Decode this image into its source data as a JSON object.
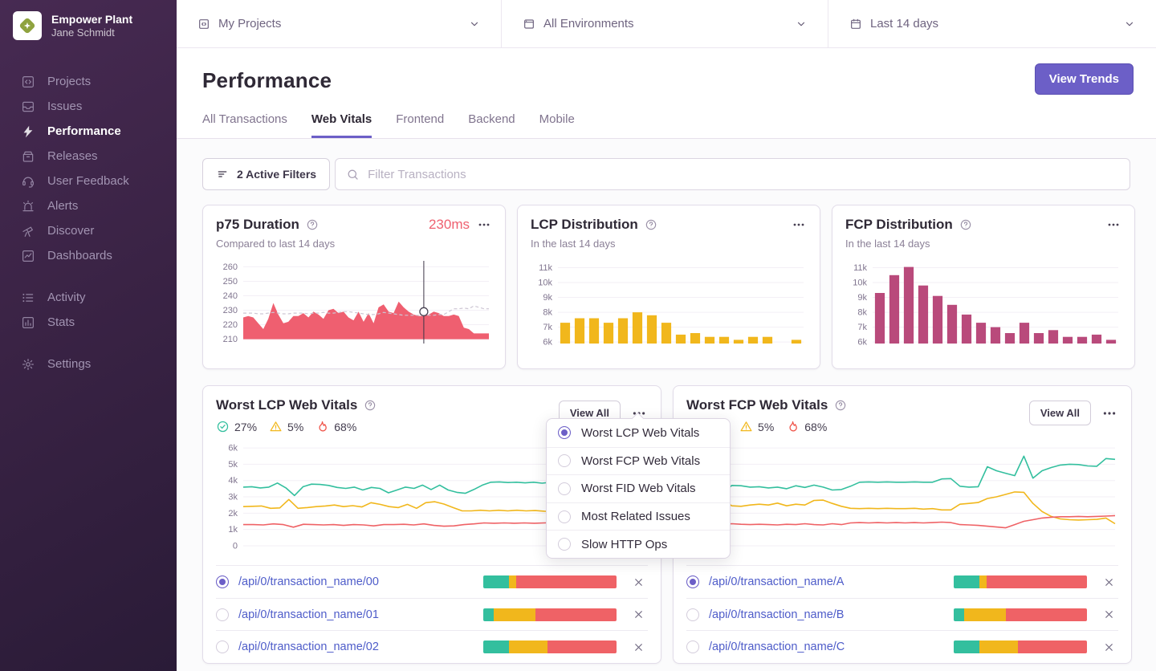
{
  "org": {
    "name": "Empower Plant",
    "user": "Jane Schmidt"
  },
  "sidebar": {
    "items": [
      {
        "label": "Projects"
      },
      {
        "label": "Issues"
      },
      {
        "label": "Performance",
        "active": true
      },
      {
        "label": "Releases"
      },
      {
        "label": "User Feedback"
      },
      {
        "label": "Alerts"
      },
      {
        "label": "Discover"
      },
      {
        "label": "Dashboards"
      }
    ],
    "secondary": [
      {
        "label": "Activity"
      },
      {
        "label": "Stats"
      }
    ],
    "settings": {
      "label": "Settings"
    }
  },
  "topbar": {
    "project_filter": "My Projects",
    "environment_filter": "All Environments",
    "date_filter": "Last 14 days"
  },
  "header": {
    "title": "Performance",
    "view_trends": "View Trends",
    "tabs": [
      {
        "label": "All Transactions"
      },
      {
        "label": "Web Vitals",
        "active": true
      },
      {
        "label": "Frontend"
      },
      {
        "label": "Backend"
      },
      {
        "label": "Mobile"
      }
    ]
  },
  "filter_bar": {
    "active_filters": "2 Active Filters",
    "search_placeholder": "Filter Transactions"
  },
  "cards": {
    "p75": {
      "title": "p75 Duration",
      "value": "230ms",
      "subtitle": "Compared to last 14 days"
    },
    "lcp": {
      "title": "LCP Distribution",
      "subtitle": "In the last 14 days"
    },
    "fcp": {
      "title": "FCP Distribution",
      "subtitle": "In the last 14 days"
    }
  },
  "vitals_cards": [
    {
      "title": "Worst LCP Web Vitals",
      "view_all": "View All",
      "stats": {
        "good": "27%",
        "meh": "5%",
        "poor": "68%"
      },
      "rows": [
        {
          "name": "/api/0/transaction_name/00",
          "selected": true,
          "bar": [
            19,
            6,
            75
          ]
        },
        {
          "name": "/api/0/transaction_name/01",
          "selected": false,
          "bar": [
            8,
            31,
            61
          ]
        },
        {
          "name": "/api/0/transaction_name/02",
          "selected": false,
          "bar": [
            19,
            29,
            52
          ]
        }
      ]
    },
    {
      "title": "Worst FCP Web Vitals",
      "view_all": "View All",
      "stats": {
        "good": "27%",
        "meh": "5%",
        "poor": "68%"
      },
      "rows": [
        {
          "name": "/api/0/transaction_name/A",
          "selected": true,
          "bar": [
            19,
            6,
            75
          ]
        },
        {
          "name": "/api/0/transaction_name/B",
          "selected": false,
          "bar": [
            8,
            31,
            61
          ]
        },
        {
          "name": "/api/0/transaction_name/C",
          "selected": false,
          "bar": [
            19,
            29,
            52
          ]
        }
      ]
    }
  ],
  "dropdown": {
    "items": [
      {
        "label": "Worst LCP Web Vitals",
        "selected": true
      },
      {
        "label": "Worst FCP Web Vitals",
        "selected": false
      },
      {
        "label": "Worst FID Web Vitals",
        "selected": false
      },
      {
        "label": "Most Related Issues",
        "selected": false
      },
      {
        "label": "Slow HTTP Ops",
        "selected": false
      }
    ]
  },
  "colors": {
    "accent": "#6C5FC7",
    "good": "#33BF9E",
    "meh": "#F1B71C",
    "poor": "#EF6266",
    "p75_area": "#EF5F70",
    "lcp_bars": "#F1B71C",
    "fcp_bars": "#B94A7B",
    "link": "#4E5CC9",
    "value_red": "#EF6070"
  },
  "chart_data": [
    {
      "id": "p75",
      "type": "area",
      "title": "p75 Duration (ms)",
      "grid": true,
      "ymin": 207,
      "ymax": 263,
      "baseline": 210,
      "color": "#EF5F70",
      "yticks": [
        [
          260,
          "260"
        ],
        [
          250,
          "250"
        ],
        [
          240,
          "240"
        ],
        [
          230,
          "230"
        ],
        [
          220,
          "220"
        ],
        [
          210,
          "210"
        ]
      ],
      "values": [
        225,
        226,
        225,
        221,
        217,
        224,
        235,
        227,
        221,
        222,
        226,
        226,
        228,
        225,
        229,
        227,
        224,
        230,
        231,
        228,
        229,
        225,
        223,
        229,
        222,
        228,
        221,
        232,
        234,
        229,
        228,
        236,
        232,
        229,
        227,
        226,
        226,
        227,
        229,
        228,
        226,
        226,
        227,
        226,
        218,
        217,
        214,
        214,
        214,
        214
      ],
      "compare": [
        228,
        228,
        228,
        227.5,
        227.5,
        228,
        228.5,
        228,
        227.5,
        227.5,
        228,
        228,
        228,
        227.5,
        228,
        228,
        228.5,
        228,
        228,
        228.5,
        229,
        229,
        228.5,
        228,
        227.5,
        227,
        227,
        227.5,
        228.5,
        228,
        227.5,
        227,
        226.5,
        226.5,
        226.5,
        226.5,
        226.5,
        226.5,
        226.5,
        227,
        227,
        229,
        231,
        231,
        231.5,
        231,
        233,
        232,
        231,
        231
      ],
      "marker": {
        "x": 0.735,
        "value": 229
      }
    },
    {
      "id": "lcp_dist",
      "type": "bar",
      "title": "LCP Distribution (count, in thousands)",
      "grid": true,
      "ymin": 5.9,
      "ymax": 11.35,
      "color": "#F1B71C",
      "yticks": [
        [
          11,
          "11k"
        ],
        [
          10,
          "10k"
        ],
        [
          9,
          "9k"
        ],
        [
          8,
          "8k"
        ],
        [
          7,
          "7k"
        ],
        [
          6,
          "6k"
        ]
      ],
      "values": [
        7.3,
        7.6,
        7.6,
        7.3,
        7.6,
        8.0,
        7.8,
        7.3,
        6.5,
        6.6,
        6.35,
        6.35,
        6.15,
        6.35,
        6.35,
        null,
        6.15
      ]
    },
    {
      "id": "fcp_dist",
      "type": "bar",
      "title": "FCP Distribution (count, in thousands)",
      "grid": true,
      "ymin": 5.9,
      "ymax": 11.35,
      "color": "#B94A7B",
      "yticks": [
        [
          11,
          "11k"
        ],
        [
          10,
          "10k"
        ],
        [
          9,
          "9k"
        ],
        [
          8,
          "8k"
        ],
        [
          7,
          "7k"
        ],
        [
          6,
          "6k"
        ]
      ],
      "values": [
        9.3,
        10.5,
        11.05,
        9.8,
        9.1,
        8.5,
        7.85,
        7.3,
        7.0,
        6.6,
        7.3,
        6.6,
        6.8,
        6.35,
        6.35,
        6.5,
        6.15
      ]
    },
    {
      "id": "lcp_lines",
      "type": "lines",
      "title": "Worst LCP Web Vitals (count, in thousands)",
      "grid": true,
      "ymin": -0.15,
      "ymax": 6.4,
      "yticks": [
        [
          6,
          "6k"
        ],
        [
          5,
          "5k"
        ],
        [
          4,
          "4k"
        ],
        [
          3,
          "3k"
        ],
        [
          2,
          "2k"
        ],
        [
          1,
          "1k"
        ],
        [
          0,
          "0"
        ]
      ],
      "series": [
        {
          "name": "good",
          "color": "#33BF9E",
          "values": [
            3.6,
            3.62,
            3.55,
            3.6,
            3.85,
            3.55,
            3.08,
            3.62,
            3.78,
            3.76,
            3.7,
            3.58,
            3.52,
            3.6,
            3.42,
            3.58,
            3.52,
            3.25,
            3.42,
            3.6,
            3.52,
            3.72,
            3.45,
            3.72,
            3.42,
            3.28,
            3.22,
            3.45,
            3.72,
            3.9,
            3.92,
            3.88,
            3.9,
            3.86,
            3.9,
            3.84,
            3.9,
            3.86,
            3.92,
            3.9,
            4.06,
            4.04,
            3.5,
            3.44,
            3.42,
            5.18,
            4.95,
            4.6
          ]
        },
        {
          "name": "meh",
          "color": "#F1B71C",
          "values": [
            2.4,
            2.42,
            2.44,
            2.3,
            2.32,
            2.84,
            2.3,
            2.34,
            2.4,
            2.44,
            2.5,
            2.4,
            2.46,
            2.38,
            2.64,
            2.54,
            2.4,
            2.34,
            2.54,
            2.3,
            2.64,
            2.7,
            2.56,
            2.34,
            2.14,
            2.14,
            2.18,
            2.14,
            2.18,
            2.14,
            2.18,
            2.14,
            2.16,
            2.12,
            2.1,
            2.02,
            2.0,
            2.0,
            2.44,
            2.5,
            2.54,
            2.6,
            2.95,
            3.2,
            3.42
          ]
        },
        {
          "name": "poor",
          "color": "#EF6266",
          "values": [
            1.3,
            1.3,
            1.28,
            1.34,
            1.3,
            1.14,
            1.32,
            1.3,
            1.28,
            1.3,
            1.25,
            1.3,
            1.28,
            1.22,
            1.3,
            1.3,
            1.32,
            1.28,
            1.34,
            1.25,
            1.2,
            1.22,
            1.3,
            1.34,
            1.4,
            1.38,
            1.4,
            1.38,
            1.4,
            1.38,
            1.4,
            1.42,
            1.44,
            1.42,
            1.3,
            1.26,
            1.2,
            1.12,
            1.05,
            1.0,
            0.95
          ]
        }
      ]
    },
    {
      "id": "fcp_lines",
      "type": "lines",
      "title": "Worst FCP Web Vitals (count, in thousands)",
      "grid": true,
      "ymin": -0.15,
      "ymax": 6.4,
      "yticks": [
        [
          6,
          "6k"
        ],
        [
          5,
          "5k"
        ],
        [
          4,
          "4k"
        ],
        [
          3,
          "3k"
        ],
        [
          2,
          "2k"
        ],
        [
          1,
          "1k"
        ],
        [
          0,
          "0"
        ]
      ],
      "series": [
        {
          "name": "good",
          "color": "#33BF9E",
          "values": [
            3.85,
            3.3,
            3.7,
            3.68,
            3.6,
            3.62,
            3.55,
            3.6,
            3.5,
            3.68,
            3.58,
            3.72,
            3.6,
            3.42,
            3.45,
            3.65,
            3.9,
            3.92,
            3.9,
            3.92,
            3.9,
            3.9,
            3.92,
            3.9,
            3.9,
            4.1,
            4.12,
            3.65,
            3.6,
            3.62,
            4.85,
            4.6,
            4.45,
            4.3,
            5.5,
            4.15,
            4.6,
            4.8,
            4.95,
            5.0,
            4.98,
            4.9,
            4.88,
            5.35,
            5.3
          ]
        },
        {
          "name": "meh",
          "color": "#F1B71C",
          "values": [
            2.4,
            2.78,
            2.45,
            2.42,
            2.5,
            2.55,
            2.5,
            2.62,
            2.45,
            2.55,
            2.5,
            2.78,
            2.8,
            2.6,
            2.42,
            2.3,
            2.28,
            2.3,
            2.28,
            2.3,
            2.28,
            2.28,
            2.3,
            2.25,
            2.28,
            2.2,
            2.2,
            2.55,
            2.6,
            2.65,
            2.9,
            3.0,
            3.15,
            3.3,
            3.28,
            2.6,
            2.1,
            1.8,
            1.65,
            1.6,
            1.58,
            1.6,
            1.62,
            1.7,
            1.35
          ]
        },
        {
          "name": "poor",
          "color": "#EF6266",
          "values": [
            1.28,
            1.3,
            1.35,
            1.32,
            1.3,
            1.32,
            1.3,
            1.28,
            1.32,
            1.3,
            1.35,
            1.3,
            1.28,
            1.35,
            1.3,
            1.4,
            1.42,
            1.4,
            1.42,
            1.4,
            1.42,
            1.4,
            1.42,
            1.4,
            1.42,
            1.45,
            1.42,
            1.3,
            1.28,
            1.25,
            1.2,
            1.15,
            1.1,
            1.3,
            1.5,
            1.6,
            1.7,
            1.75,
            1.78,
            1.78,
            1.8,
            1.78,
            1.8,
            1.82,
            1.85
          ]
        }
      ]
    }
  ]
}
